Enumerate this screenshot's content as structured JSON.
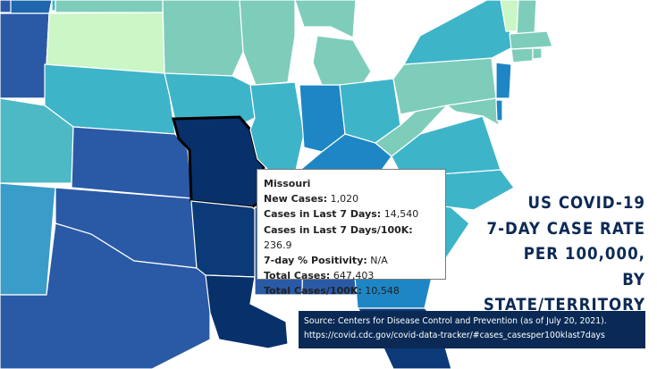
{
  "map": {
    "highlighted_state": "Missouri",
    "colors": {
      "darkest": "#08306b",
      "dark_blue": "#2a5aa6",
      "mid_blue": "#1e86c4",
      "teal": "#3eb4c9",
      "light_teal": "#7ecdbb",
      "pale_green": "#cbf6c5",
      "land_fill": "#4cb0c2"
    }
  },
  "tooltip": {
    "state": "Missouri",
    "rows": [
      {
        "label": "New Cases:",
        "value": "1,020"
      },
      {
        "label": "Cases in Last 7 Days:",
        "value": "14,540"
      },
      {
        "label": "Cases in Last 7 Days/100K:",
        "value": "236.9"
      },
      {
        "label": "7-day % Positivity:",
        "value": "N/A"
      },
      {
        "label": "Total Cases:",
        "value": "647,403"
      },
      {
        "label": "Total Cases/100K:",
        "value": "10,548"
      }
    ]
  },
  "headline": {
    "line1": "US COVID-19",
    "line2": "7-DAY CASE RATE",
    "line3": "PER 100,000,",
    "line4": "BY STATE/TERRITORY"
  },
  "source": {
    "line1": "Source: Centers for Disease Control and Prevention (as of July 20, 2021).",
    "line2": "https://covid.cdc.gov/covid-data-tracker/#cases_casesper100klast7days"
  }
}
